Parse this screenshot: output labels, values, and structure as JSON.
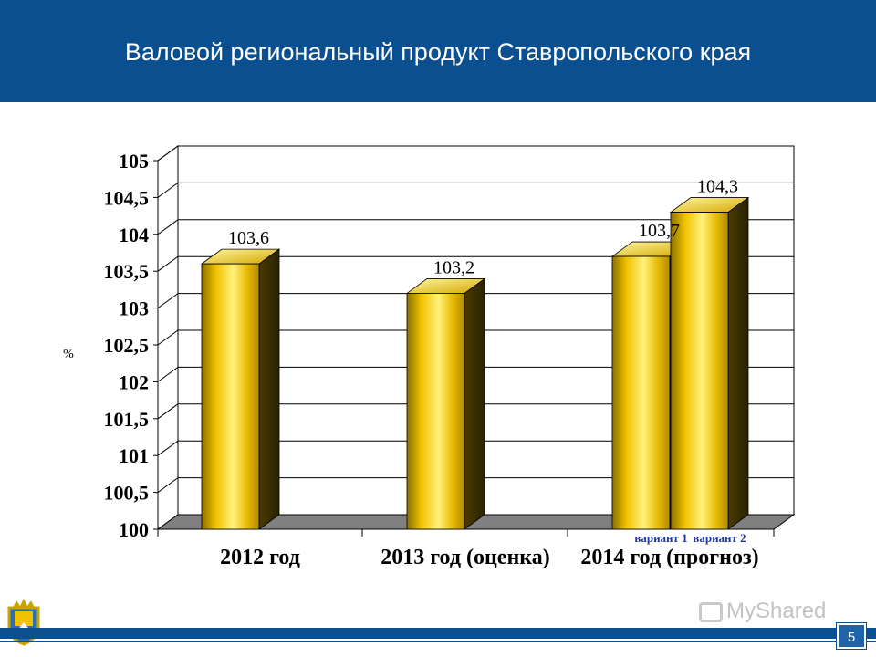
{
  "header": {
    "title": "Валовой региональный продукт Ставропольского края"
  },
  "page_number": "5",
  "watermark": "MyShared",
  "colors": {
    "header_bg": "#0a4f8f",
    "bar_face": "#f2c200",
    "bar_side": "#5a4a00",
    "floor": "#7f7f7f",
    "variant_label": "#1f3a9a"
  },
  "chart_data": {
    "type": "bar",
    "title": "",
    "ylabel": "%",
    "xlabel": "",
    "ylim": [
      100,
      105
    ],
    "yticks": [
      "100",
      "100,5",
      "101",
      "101,5",
      "102",
      "102,5",
      "103",
      "103,5",
      "104",
      "104,5",
      "105"
    ],
    "categories": [
      "2012 год",
      "2013 год (оценка)",
      "2014 год (прогноз)"
    ],
    "bars": [
      {
        "category": "2012 год",
        "value": 103.6,
        "label": "103,6",
        "sublabel": ""
      },
      {
        "category": "2013 год (оценка)",
        "value": 103.2,
        "label": "103,2",
        "sublabel": ""
      },
      {
        "category": "2014 год (прогноз)",
        "value": 103.7,
        "label": "103,7",
        "sublabel": "вариант 1"
      },
      {
        "category": "2014 год (прогноз)",
        "value": 104.3,
        "label": "104,3",
        "sublabel": "вариант 2"
      }
    ],
    "grid": true
  }
}
